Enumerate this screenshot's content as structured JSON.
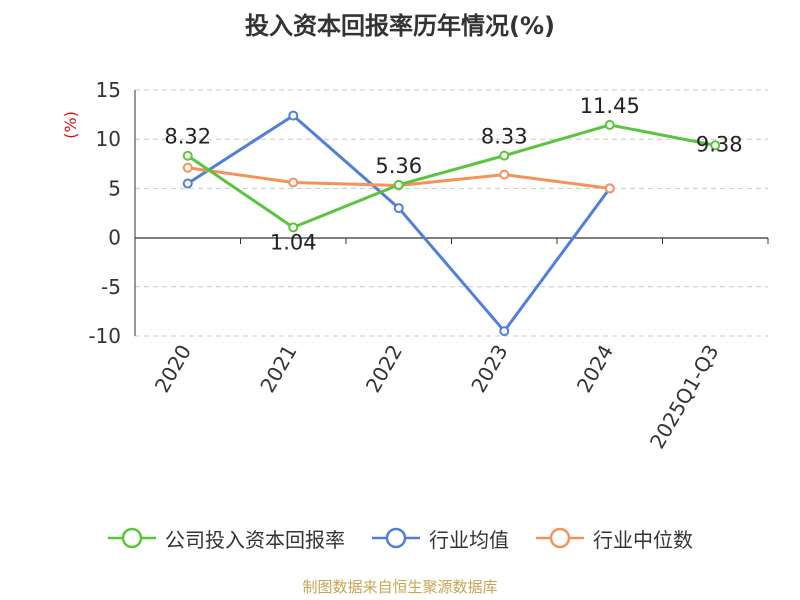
{
  "chart_data": {
    "type": "line",
    "title": "投入资本回报率历年情况(%)",
    "ylabel": "(%)",
    "categories": [
      "2020",
      "2021",
      "2022",
      "2023",
      "2024",
      "2025Q1-Q3"
    ],
    "ylim": [
      -10,
      15
    ],
    "yticks": [
      "15",
      "10",
      "5",
      "0",
      "-5",
      "-10"
    ],
    "grid": true,
    "legend_position": "bottom",
    "series": [
      {
        "name": "公司投入资本回报率",
        "color": "#5ac43c",
        "values": [
          8.32,
          1.04,
          5.36,
          8.33,
          11.45,
          9.38
        ],
        "labels": [
          "8.32",
          "1.04",
          "5.36",
          "8.33",
          "11.45",
          "9.38"
        ]
      },
      {
        "name": "行业均值",
        "color": "#4f7fd8",
        "values": [
          5.5,
          12.4,
          3.0,
          -9.5,
          5.0,
          null
        ]
      },
      {
        "name": "行业中位数",
        "color": "#f5925a",
        "values": [
          7.1,
          5.6,
          5.3,
          6.4,
          5.0,
          null
        ]
      }
    ]
  },
  "source": "制图数据来自恒生聚源数据库"
}
